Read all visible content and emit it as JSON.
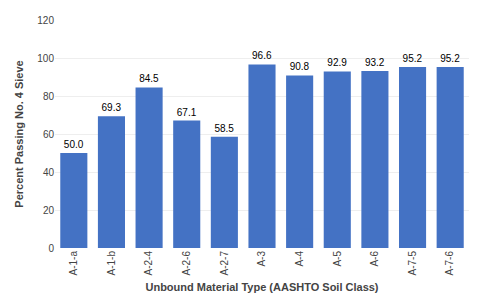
{
  "chart_data": {
    "type": "bar",
    "categories": [
      "A-1-a",
      "A-1-b",
      "A-2-4",
      "A-2-6",
      "A-2-7",
      "A-3",
      "A-4",
      "A-5",
      "A-6",
      "A-7-5",
      "A-7-6"
    ],
    "values": [
      50.0,
      69.3,
      84.5,
      67.1,
      58.5,
      96.6,
      90.8,
      92.9,
      93.2,
      95.2,
      95.2
    ],
    "value_labels": [
      "50.0",
      "69.3",
      "84.5",
      "67.1",
      "58.5",
      "96.6",
      "90.8",
      "92.9",
      "93.2",
      "95.2",
      "95.2"
    ],
    "data_labels": true,
    "color": "#4472C4",
    "xlabel": "Unbound Material Type (AASHTO Soil Class)",
    "ylabel": "Percent Passing No. 4 Sieve",
    "ylim": [
      0,
      120
    ],
    "yticks": [
      0,
      20,
      40,
      60,
      80,
      100,
      120
    ],
    "grid": true
  }
}
